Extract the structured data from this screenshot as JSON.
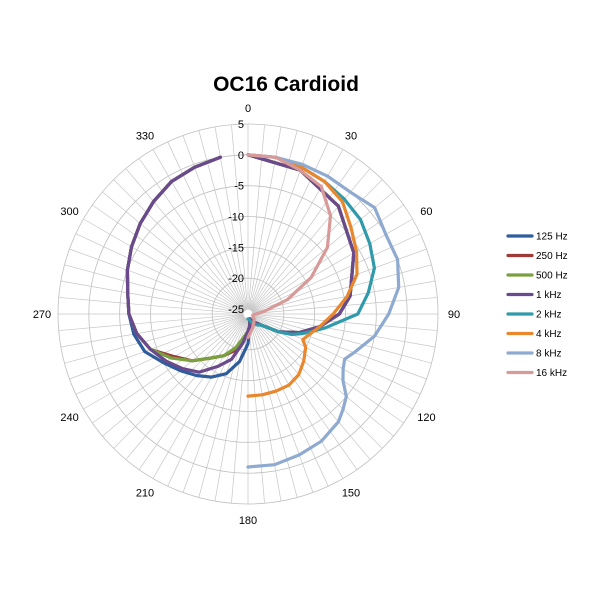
{
  "chart_data": {
    "type": "polar-line",
    "title": "OC16 Cardioid",
    "radial_axis": {
      "min": -25,
      "max": 5,
      "ticks": [
        5,
        0,
        -5,
        -10,
        -15,
        -20,
        -25
      ],
      "tick_labels": [
        "5",
        "0",
        "-5",
        "-10",
        "-15",
        "-20",
        "-25"
      ]
    },
    "angular_axis": {
      "unit": "degrees",
      "direction": "clockwise",
      "zero": "top",
      "tick_labels": [
        "0",
        "30",
        "60",
        "90",
        "120",
        "150",
        "180",
        "210",
        "240",
        "270",
        "300",
        "330"
      ],
      "grid_step": 5
    },
    "grid": true,
    "legend": "right",
    "series": [
      {
        "name": "125 Hz",
        "color": "#2E5C9C",
        "angles": [
          0,
          20,
          40,
          60,
          80,
          90,
          100,
          110,
          120,
          130,
          140,
          150,
          160,
          170,
          180,
          190,
          200,
          210,
          220,
          230,
          240,
          250,
          260,
          270,
          280,
          290,
          300,
          310,
          320,
          330,
          340,
          350
        ],
        "values": [
          0,
          -1,
          -3,
          -6,
          -9,
          -11,
          -14,
          -17,
          -20,
          -23,
          -24,
          -24.5,
          -25,
          -24,
          -21,
          -18,
          -15.5,
          -14,
          -12.8,
          -11.5,
          -10,
          -8,
          -7,
          -6.5,
          -6,
          -5,
          -4,
          -3,
          -2,
          -1,
          -0.5,
          0
        ]
      },
      {
        "name": "250 Hz",
        "color": "#9E3A38",
        "angles": [
          0,
          20,
          40,
          60,
          80,
          90,
          100,
          110,
          120,
          130,
          140,
          150,
          160,
          170,
          180,
          190,
          200,
          210,
          220,
          230,
          240,
          250,
          260,
          270,
          280,
          290,
          300,
          310,
          320,
          330,
          340,
          350
        ],
        "values": [
          0,
          -1,
          -3,
          -6,
          -9,
          -11,
          -14,
          -17,
          -20,
          -23,
          -24,
          -24.5,
          -25,
          -24,
          -23,
          -21.5,
          -19.5,
          -18,
          -16.5,
          -14,
          -12,
          -9,
          -7.5,
          -6.5,
          -6,
          -5,
          -4,
          -3,
          -2,
          -1,
          -0.5,
          0
        ]
      },
      {
        "name": "500 Hz",
        "color": "#7AA040",
        "angles": [
          0,
          20,
          40,
          60,
          80,
          90,
          100,
          110,
          120,
          130,
          140,
          150,
          160,
          170,
          180,
          190,
          200,
          210,
          220,
          230,
          240,
          250,
          260,
          270,
          280,
          290,
          300,
          310,
          320,
          330,
          340,
          350
        ],
        "values": [
          0,
          -1,
          -3,
          -6,
          -9,
          -11,
          -14,
          -17,
          -20,
          -23,
          -24,
          -24.5,
          -25,
          -24,
          -23,
          -22,
          -20,
          -18,
          -16.5,
          -14,
          -11.5,
          -9,
          -7.5,
          -6.5,
          -6,
          -5,
          -4,
          -3,
          -2,
          -1,
          -0.5,
          0
        ]
      },
      {
        "name": "1 kHz",
        "color": "#6A4A8C",
        "angles": [
          0,
          20,
          40,
          60,
          80,
          90,
          100,
          110,
          120,
          130,
          140,
          150,
          160,
          170,
          180,
          190,
          200,
          210,
          220,
          230,
          240,
          250,
          260,
          270,
          280,
          290,
          300,
          310,
          320,
          330,
          340,
          350
        ],
        "values": [
          0,
          -1,
          -3,
          -6,
          -9,
          -11,
          -14,
          -17,
          -20,
          -23,
          -24,
          -24.5,
          -25,
          -24,
          -23,
          -21,
          -18,
          -16,
          -13.5,
          -12,
          -10.5,
          -9,
          -7.5,
          -6.5,
          -6,
          -5,
          -4,
          -3,
          -2,
          -1,
          -0.5,
          0
        ]
      },
      {
        "name": "2 kHz",
        "color": "#2E9AAA",
        "angles": [
          0,
          10,
          20,
          30,
          40,
          50,
          60,
          70,
          80,
          90,
          95,
          100,
          105,
          110,
          115,
          120,
          130,
          140,
          150,
          160,
          165,
          170,
          175,
          180
        ],
        "values": [
          0,
          0,
          -0.5,
          -1,
          -1.5,
          -2,
          -3,
          -4,
          -6,
          -8,
          -11,
          -13,
          -15,
          -16.5,
          -18,
          -20,
          -23,
          -23.5,
          -24,
          -24.5,
          -24.8,
          -24.9,
          -25,
          -25
        ]
      },
      {
        "name": "4 kHz",
        "color": "#E8872E",
        "angles": [
          0,
          10,
          20,
          30,
          40,
          50,
          60,
          70,
          80,
          90,
          100,
          110,
          115,
          120,
          130,
          140,
          150,
          160,
          170,
          180
        ],
        "values": [
          0,
          0,
          -0.5,
          -1,
          -2,
          -4,
          -5.5,
          -7,
          -9.5,
          -12,
          -14,
          -15.5,
          -16,
          -15,
          -14,
          -13,
          -12.5,
          -12.5,
          -12.5,
          -12.5
        ]
      },
      {
        "name": "8 kHz",
        "color": "#8FAAD0",
        "angles": [
          0,
          10,
          20,
          30,
          40,
          50,
          60,
          70,
          80,
          90,
          100,
          110,
          115,
          120,
          125,
          130,
          135,
          140,
          150,
          160,
          170,
          180
        ],
        "values": [
          0,
          0,
          0,
          0,
          0,
          1,
          0,
          0,
          -1,
          -3,
          -5,
          -7.5,
          -8.5,
          -8,
          -7,
          -5,
          -4,
          -3,
          -2,
          -1.5,
          -1,
          -1
        ]
      },
      {
        "name": "16 kHz",
        "color": "#D89A98",
        "angles": [
          0,
          10,
          20,
          30,
          40,
          50,
          60,
          70,
          80,
          85,
          90,
          100,
          110,
          120,
          130,
          140,
          150,
          160,
          170,
          180
        ],
        "values": [
          0,
          0,
          -1,
          -2,
          -5,
          -9,
          -14,
          -19,
          -23,
          -24,
          -24.5,
          -25,
          -25,
          -24.8,
          -24.5,
          -24.3,
          -24,
          -23.5,
          -23,
          -22
        ]
      }
    ]
  }
}
